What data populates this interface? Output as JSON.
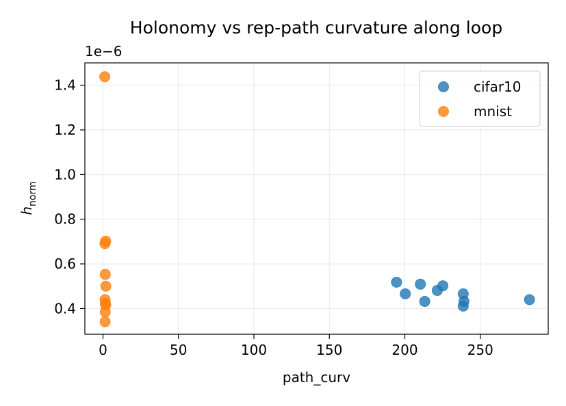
{
  "chart_data": {
    "type": "scatter",
    "title": "Holonomy vs rep-path curvature along loop",
    "xlabel": "path_curv",
    "ylabel_main": "h",
    "ylabel_sub": "norm",
    "y_offset_label": "1e−6",
    "xlim": [
      -12,
      295
    ],
    "ylim": [
      0.285,
      1.5
    ],
    "x_ticks": [
      0,
      50,
      100,
      150,
      200,
      250
    ],
    "x_tick_labels": [
      "0",
      "50",
      "100",
      "150",
      "200",
      "250"
    ],
    "y_ticks": [
      0.4,
      0.6,
      0.8,
      1.0,
      1.2,
      1.4
    ],
    "y_tick_labels": [
      "0.4",
      "0.6",
      "0.8",
      "1.0",
      "1.2",
      "1.4"
    ],
    "grid": true,
    "legend_position": "top-right",
    "series": [
      {
        "name": "cifar10",
        "color": "#1f77b4",
        "points": [
          {
            "x": 194.5,
            "y": 0.518
          },
          {
            "x": 200.3,
            "y": 0.466
          },
          {
            "x": 210.3,
            "y": 0.509
          },
          {
            "x": 213.2,
            "y": 0.432
          },
          {
            "x": 221.5,
            "y": 0.481
          },
          {
            "x": 225.2,
            "y": 0.502
          },
          {
            "x": 238.7,
            "y": 0.466
          },
          {
            "x": 239.2,
            "y": 0.432
          },
          {
            "x": 238.7,
            "y": 0.411
          },
          {
            "x": 282.6,
            "y": 0.44
          }
        ]
      },
      {
        "name": "mnist",
        "color": "#ff7f0e",
        "points": [
          {
            "x": 1.2,
            "y": 1.438
          },
          {
            "x": 1.8,
            "y": 0.702
          },
          {
            "x": 1.3,
            "y": 0.691
          },
          {
            "x": 1.5,
            "y": 0.553
          },
          {
            "x": 1.9,
            "y": 0.5
          },
          {
            "x": 1.4,
            "y": 0.44
          },
          {
            "x": 1.6,
            "y": 0.422
          },
          {
            "x": 1.8,
            "y": 0.417
          },
          {
            "x": 1.5,
            "y": 0.385
          },
          {
            "x": 1.4,
            "y": 0.341
          }
        ]
      }
    ]
  }
}
